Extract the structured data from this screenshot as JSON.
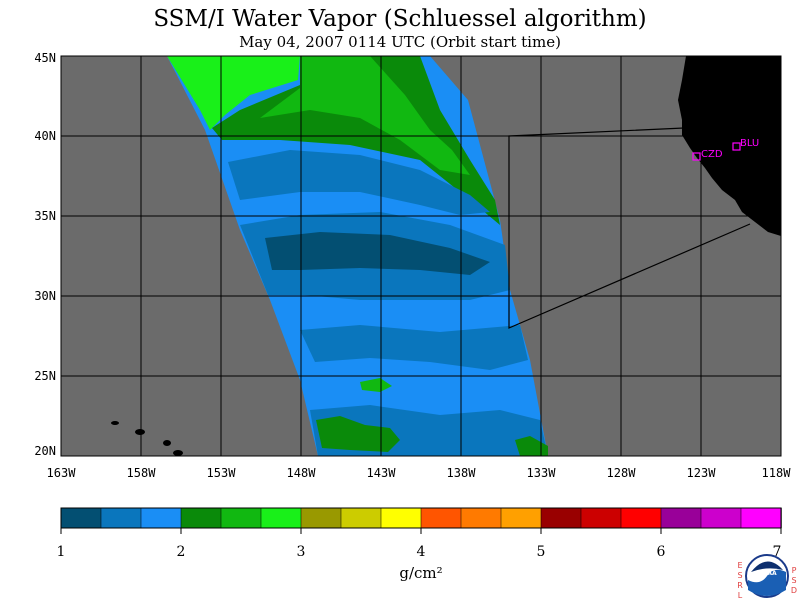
{
  "title": "SSM/I Water Vapor (Schluessel algorithm)",
  "subtitle": "May 04, 2007  0114 UTC  (Orbit start time)",
  "lat_labels": [
    "45N",
    "40N",
    "35N",
    "30N",
    "25N",
    "20N"
  ],
  "lon_labels": [
    "163W",
    "158W",
    "153W",
    "148W",
    "143W",
    "138W",
    "133W",
    "128W",
    "123W",
    "118W"
  ],
  "stations": [
    {
      "code": "CZD",
      "lon": -123.0,
      "lat": 38.6
    },
    {
      "code": "BLU",
      "lon": -120.7,
      "lat": 39.3
    }
  ],
  "colorbar": {
    "ticks": [
      "1",
      "2",
      "3",
      "4",
      "5",
      "6",
      "7"
    ],
    "unit": "g/cm²",
    "colors": [
      "#034f72",
      "#0a76bd",
      "#1a8ef5",
      "#0a8a0a",
      "#11b811",
      "#19f019",
      "#999900",
      "#cccc00",
      "#ffff00",
      "#ff5500",
      "#ff7a00",
      "#ffa000",
      "#990000",
      "#cc0000",
      "#ff0000",
      "#990099",
      "#cc00cc",
      "#ff00ff"
    ]
  },
  "logo": {
    "left_letters": "ESRL",
    "right_letters": "PSD",
    "center_text": "NOAA"
  },
  "colors": {
    "no_data": "#6b6b6b",
    "land": "#000000",
    "station_marker": "#ff00ff"
  }
}
